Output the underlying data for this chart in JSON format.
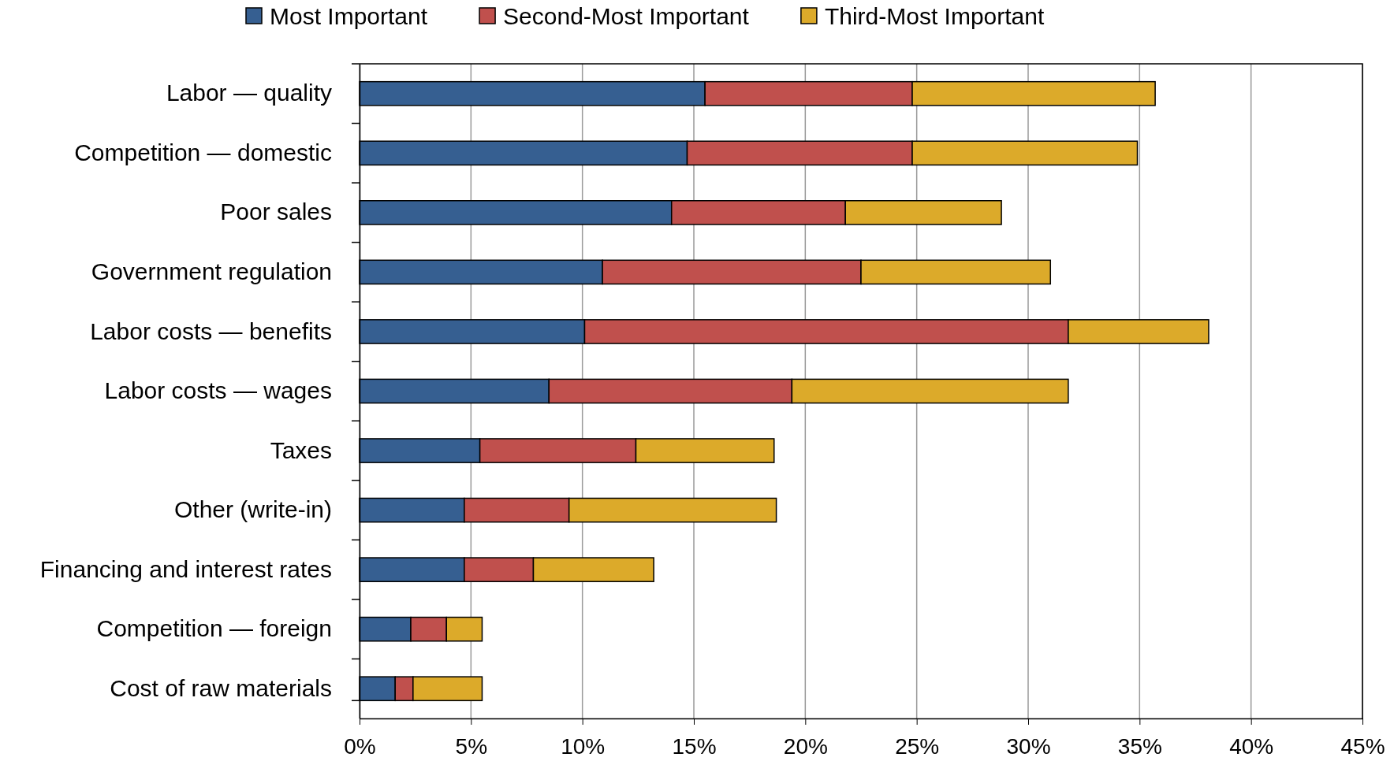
{
  "chart_data": {
    "type": "bar",
    "orientation": "horizontal",
    "stacked": true,
    "grid": "x",
    "legend": "top",
    "categories": [
      "Labor — quality",
      "Competition — domestic",
      "Poor sales",
      "Government regulation",
      "Labor costs — benefits",
      "Labor costs — wages",
      "Taxes",
      "Other (write-in)",
      "Financing and interest rates",
      "Competition — foreign",
      "Cost of raw materials"
    ],
    "series": [
      {
        "name": "Most Important",
        "color": "#365f91",
        "values": [
          15.5,
          14.7,
          14.0,
          10.9,
          10.1,
          8.5,
          5.4,
          4.7,
          4.7,
          2.3,
          1.6
        ]
      },
      {
        "name": "Second-Most Important",
        "color": "#c0504d",
        "values": [
          9.3,
          10.1,
          7.8,
          11.6,
          21.7,
          10.9,
          7.0,
          4.7,
          3.1,
          1.6,
          0.8
        ]
      },
      {
        "name": "Third-Most Important",
        "color": "#dcaa2a",
        "values": [
          10.9,
          10.1,
          7.0,
          8.5,
          6.3,
          12.4,
          6.2,
          9.3,
          5.4,
          1.6,
          3.1
        ]
      }
    ],
    "xlim": [
      0,
      45
    ],
    "xticks": [
      {
        "value": 0,
        "label": "0%"
      },
      {
        "value": 5,
        "label": "5%"
      },
      {
        "value": 10,
        "label": "10%"
      },
      {
        "value": 15,
        "label": "15%"
      },
      {
        "value": 20,
        "label": "20%"
      },
      {
        "value": 25,
        "label": "25%"
      },
      {
        "value": 30,
        "label": "30%"
      },
      {
        "value": 35,
        "label": "35%"
      },
      {
        "value": 40,
        "label": "40%"
      },
      {
        "value": 45,
        "label": "45%"
      }
    ]
  }
}
